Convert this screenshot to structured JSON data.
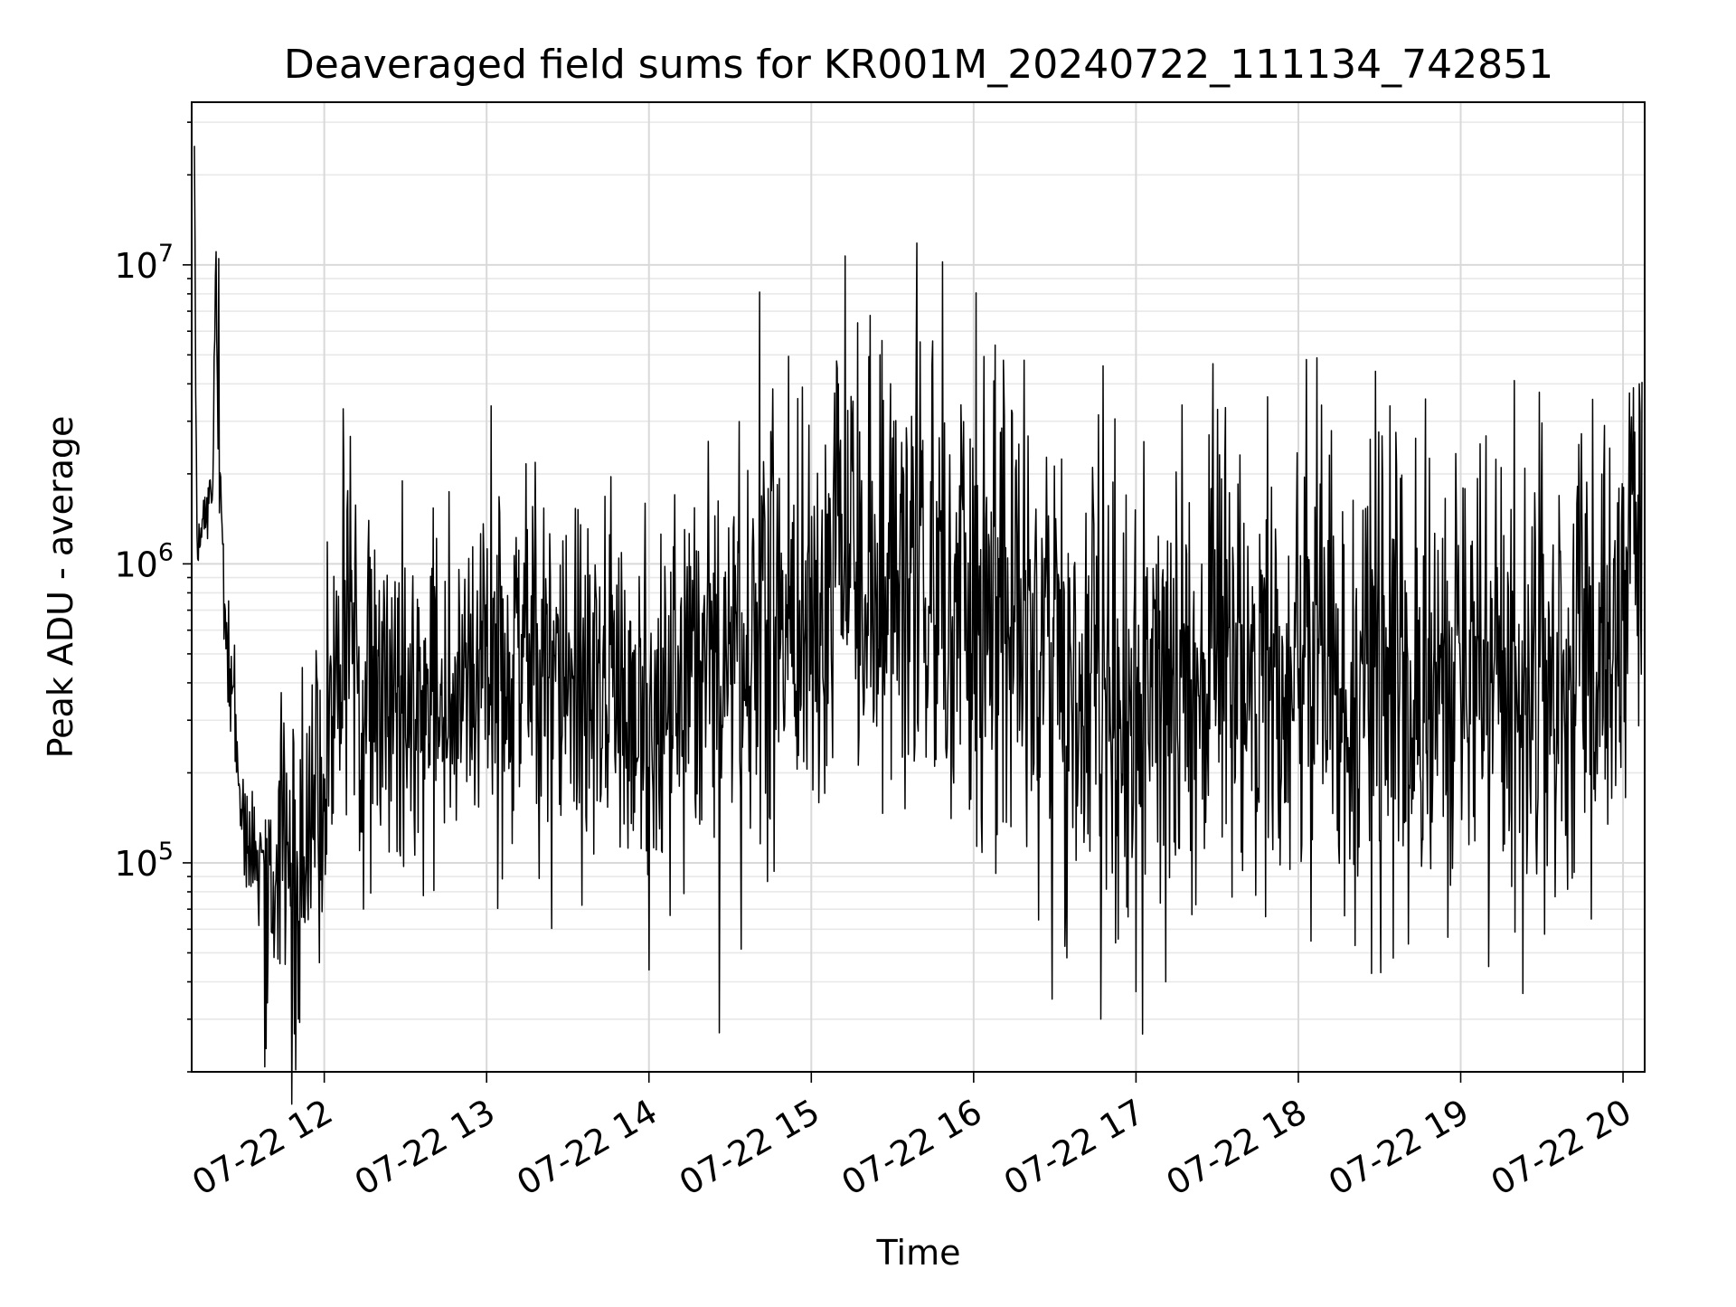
{
  "chart_data": {
    "type": "line",
    "title": "Deaveraged field sums for KR001M_20240722_111134_742851",
    "xlabel": "Time",
    "ylabel": "Peak ADU - average",
    "y_scale": "log",
    "grid": true,
    "legend": "none",
    "xlim": [
      "2024-07-22 11:11",
      "2024-07-22 20:08"
    ],
    "ylim": [
      20000,
      35000000
    ],
    "x_ticks": [
      "07-22 12",
      "07-22 13",
      "07-22 14",
      "07-22 15",
      "07-22 16",
      "07-22 17",
      "07-22 18",
      "07-22 19",
      "07-22 20"
    ],
    "y_ticks": [
      {
        "base": "10",
        "exp": "5",
        "value": 100000
      },
      {
        "base": "10",
        "exp": "6",
        "value": 1000000
      },
      {
        "base": "10",
        "exp": "7",
        "value": 10000000
      }
    ],
    "series": [
      {
        "color": "#000000",
        "x": [
          "2024-07-22 11:12",
          "2024-07-22 11:13",
          "2024-07-22 11:15",
          "2024-07-22 11:17",
          "2024-07-22 11:19",
          "2024-07-22 11:20",
          "2024-07-22 11:21",
          "2024-07-22 11:22",
          "2024-07-22 11:23",
          "2024-07-22 11:24",
          "2024-07-22 11:26",
          "2024-07-22 11:28",
          "2024-07-22 11:30",
          "2024-07-22 11:33",
          "2024-07-22 11:36",
          "2024-07-22 11:40",
          "2024-07-22 11:45",
          "2024-07-22 11:50",
          "2024-07-22 11:55",
          "2024-07-22 12:00",
          "2024-07-22 12:05",
          "2024-07-22 12:15",
          "2024-07-22 12:30",
          "2024-07-22 12:45",
          "2024-07-22 13:00",
          "2024-07-22 13:15",
          "2024-07-22 13:30",
          "2024-07-22 13:45",
          "2024-07-22 14:00",
          "2024-07-22 14:15",
          "2024-07-22 14:25",
          "2024-07-22 14:40",
          "2024-07-22 15:00",
          "2024-07-22 15:15",
          "2024-07-22 15:30",
          "2024-07-22 15:45",
          "2024-07-22 16:00",
          "2024-07-22 16:15",
          "2024-07-22 16:30",
          "2024-07-22 16:45",
          "2024-07-22 17:00",
          "2024-07-22 17:15",
          "2024-07-22 17:30",
          "2024-07-22 17:45",
          "2024-07-22 18:00",
          "2024-07-22 18:15",
          "2024-07-22 18:30",
          "2024-07-22 18:45",
          "2024-07-22 19:00",
          "2024-07-22 19:15",
          "2024-07-22 19:30",
          "2024-07-22 19:45",
          "2024-07-22 20:00",
          "2024-07-22 20:07"
        ],
        "y": [
          25000000,
          1000000,
          1400000,
          1500000,
          2500000,
          10500000,
          2000000,
          1800000,
          700000,
          550000,
          350000,
          220000,
          140000,
          110000,
          90000,
          100000,
          95000,
          110000,
          120000,
          150000,
          550000,
          400000,
          380000,
          400000,
          420000,
          430000,
          410000,
          400000,
          330000,
          420000,
          450000,
          600000,
          750000,
          1000000,
          1000000,
          950000,
          700000,
          600000,
          550000,
          400000,
          300000,
          380000,
          420000,
          430000,
          450000,
          420000,
          380000,
          400000,
          450000,
          430000,
          420000,
          400000,
          800000,
          1600000
        ],
        "peaks": [
          {
            "x": "2024-07-22 11:21",
            "y": 10500000
          },
          {
            "x": "2024-07-22 12:07",
            "y": 3300000
          },
          {
            "x": "2024-07-22 14:26",
            "y": 27000
          },
          {
            "x": "2024-07-22 15:10",
            "y": 4000000
          },
          {
            "x": "2024-07-22 16:11",
            "y": 4800000
          },
          {
            "x": "2024-07-22 16:29",
            "y": 35000
          },
          {
            "x": "2024-07-22 16:47",
            "y": 30000
          },
          {
            "x": "2024-07-22 17:11",
            "y": 40000
          },
          {
            "x": "2024-07-22 20:06",
            "y": 4000000
          }
        ]
      }
    ]
  }
}
